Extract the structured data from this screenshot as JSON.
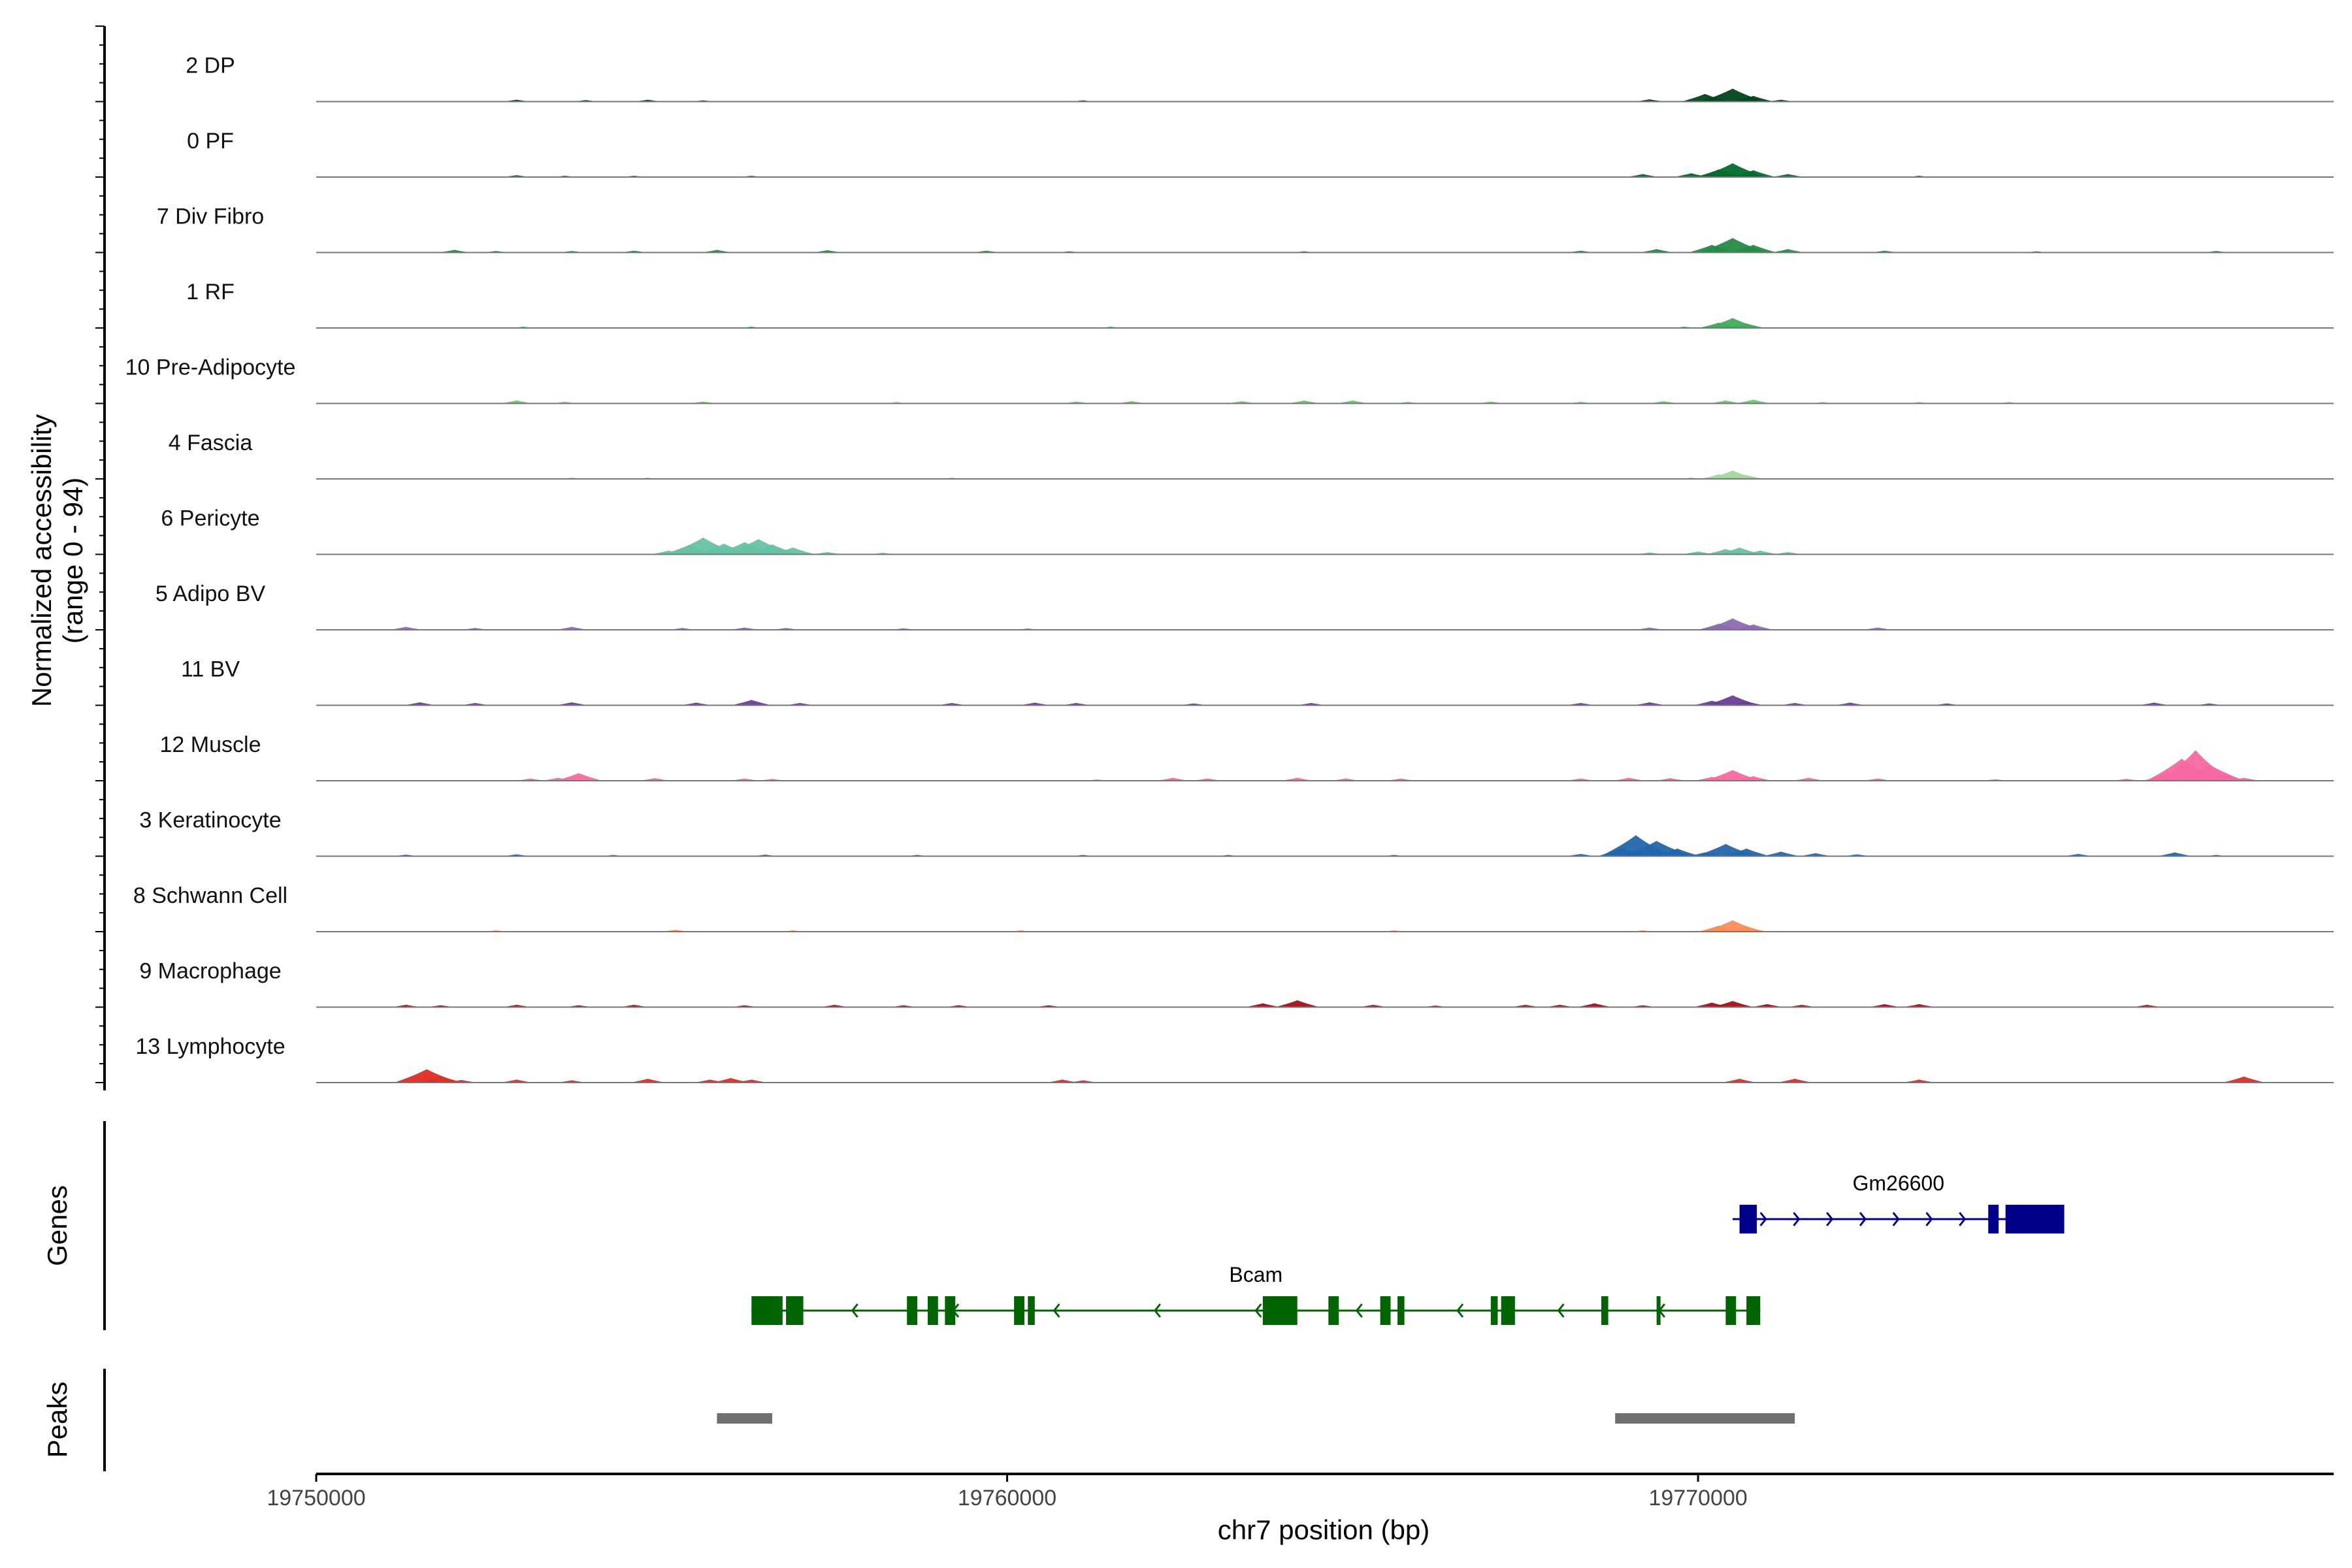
{
  "chart_data": {
    "type": "area",
    "region": {
      "chrom": "chr7",
      "start": 19750000,
      "end": 19779200
    },
    "ylabel": "Normalized accessibility",
    "ylabel_range": "(range 0 - 94)",
    "yrange": [
      0,
      94
    ],
    "xlabel": "chr7 position (bp)",
    "x_ticks": [
      {
        "value": 19750000,
        "label": "19750000"
      },
      {
        "value": 19760000,
        "label": "19760000"
      },
      {
        "value": 19770000,
        "label": "19770000"
      }
    ],
    "tracks": [
      {
        "name": "2 DP",
        "color": "#00441b",
        "bins": [
          [
            19752900,
            5
          ],
          [
            19753900,
            4
          ],
          [
            19754800,
            5
          ],
          [
            19755600,
            3
          ],
          [
            19761100,
            2
          ],
          [
            19769300,
            6
          ],
          [
            19770100,
            20
          ],
          [
            19770500,
            34
          ],
          [
            19770800,
            15
          ],
          [
            19771200,
            5
          ]
        ]
      },
      {
        "name": "0 PF",
        "color": "#006d2c",
        "bins": [
          [
            19752900,
            5
          ],
          [
            19753600,
            3
          ],
          [
            19754600,
            3
          ],
          [
            19756300,
            3
          ],
          [
            19769200,
            8
          ],
          [
            19769900,
            10
          ],
          [
            19770300,
            20
          ],
          [
            19770500,
            36
          ],
          [
            19770800,
            18
          ],
          [
            19771300,
            8
          ],
          [
            19773200,
            2
          ]
        ]
      },
      {
        "name": "7 Div Fibro",
        "color": "#238b45",
        "bins": [
          [
            19752000,
            7
          ],
          [
            19752600,
            4
          ],
          [
            19753700,
            4
          ],
          [
            19754600,
            5
          ],
          [
            19755800,
            7
          ],
          [
            19757400,
            6
          ],
          [
            19759700,
            5
          ],
          [
            19760900,
            3
          ],
          [
            19764300,
            3
          ],
          [
            19768300,
            5
          ],
          [
            19769400,
            9
          ],
          [
            19770200,
            20
          ],
          [
            19770500,
            38
          ],
          [
            19770800,
            20
          ],
          [
            19771300,
            9
          ],
          [
            19772700,
            5
          ],
          [
            19774900,
            3
          ],
          [
            19777500,
            4
          ]
        ]
      },
      {
        "name": "1 RF",
        "color": "#41ab5d",
        "bins": [
          [
            19753000,
            2
          ],
          [
            19756300,
            2
          ],
          [
            19761500,
            1
          ],
          [
            19769800,
            3
          ],
          [
            19770300,
            14
          ],
          [
            19770500,
            26
          ],
          [
            19770700,
            12
          ]
        ]
      },
      {
        "name": "10 Pre-Adipocyte",
        "color": "#74c476",
        "bins": [
          [
            19752900,
            8
          ],
          [
            19753600,
            4
          ],
          [
            19755600,
            5
          ],
          [
            19758400,
            2
          ],
          [
            19761000,
            5
          ],
          [
            19761800,
            6
          ],
          [
            19763400,
            6
          ],
          [
            19764300,
            8
          ],
          [
            19765000,
            8
          ],
          [
            19765800,
            4
          ],
          [
            19767000,
            5
          ],
          [
            19768300,
            4
          ],
          [
            19769500,
            6
          ],
          [
            19770400,
            8
          ],
          [
            19770800,
            10
          ],
          [
            19771800,
            3
          ],
          [
            19773200,
            2
          ],
          [
            19774500,
            2
          ]
        ]
      },
      {
        "name": "4 Fascia",
        "color": "#a1d99b",
        "bins": [
          [
            19753700,
            1
          ],
          [
            19754800,
            1
          ],
          [
            19759200,
            1
          ],
          [
            19769900,
            2
          ],
          [
            19770300,
            12
          ],
          [
            19770500,
            22
          ],
          [
            19770700,
            10
          ]
        ]
      },
      {
        "name": "6 Pericyte",
        "color": "#66c2a4",
        "bins": [
          [
            19755100,
            10
          ],
          [
            19755400,
            25
          ],
          [
            19755600,
            44
          ],
          [
            19755900,
            28
          ],
          [
            19756200,
            32
          ],
          [
            19756400,
            40
          ],
          [
            19756600,
            26
          ],
          [
            19756900,
            18
          ],
          [
            19757400,
            6
          ],
          [
            19758200,
            4
          ],
          [
            19769300,
            5
          ],
          [
            19770000,
            8
          ],
          [
            19770400,
            14
          ],
          [
            19770600,
            18
          ],
          [
            19770900,
            10
          ],
          [
            19771300,
            6
          ]
        ]
      },
      {
        "name": "5 Adipo BV",
        "color": "#8c6bb1",
        "bins": [
          [
            19751300,
            8
          ],
          [
            19752300,
            5
          ],
          [
            19753700,
            8
          ],
          [
            19755300,
            5
          ],
          [
            19756200,
            6
          ],
          [
            19756800,
            5
          ],
          [
            19758500,
            4
          ],
          [
            19760300,
            3
          ],
          [
            19769300,
            6
          ],
          [
            19770300,
            16
          ],
          [
            19770500,
            30
          ],
          [
            19770800,
            14
          ],
          [
            19772600,
            6
          ]
        ]
      },
      {
        "name": "11 BV",
        "color": "#6a3d9a",
        "bins": [
          [
            19751500,
            8
          ],
          [
            19752300,
            6
          ],
          [
            19753700,
            8
          ],
          [
            19755500,
            7
          ],
          [
            19756300,
            14
          ],
          [
            19757000,
            6
          ],
          [
            19759200,
            6
          ],
          [
            19760400,
            7
          ],
          [
            19761000,
            6
          ],
          [
            19762700,
            5
          ],
          [
            19764400,
            6
          ],
          [
            19768300,
            6
          ],
          [
            19769300,
            8
          ],
          [
            19770200,
            12
          ],
          [
            19770500,
            26
          ],
          [
            19770700,
            10
          ],
          [
            19771400,
            6
          ],
          [
            19772200,
            7
          ],
          [
            19773600,
            5
          ],
          [
            19776600,
            7
          ],
          [
            19777400,
            5
          ]
        ]
      },
      {
        "name": "12 Muscle",
        "color": "#f768a1",
        "bins": [
          [
            19753100,
            6
          ],
          [
            19753500,
            8
          ],
          [
            19753800,
            20
          ],
          [
            19754900,
            7
          ],
          [
            19756200,
            6
          ],
          [
            19756600,
            5
          ],
          [
            19761300,
            3
          ],
          [
            19762400,
            8
          ],
          [
            19762900,
            6
          ],
          [
            19764200,
            8
          ],
          [
            19764900,
            6
          ],
          [
            19765700,
            6
          ],
          [
            19768300,
            6
          ],
          [
            19769000,
            8
          ],
          [
            19769600,
            7
          ],
          [
            19770200,
            10
          ],
          [
            19770500,
            28
          ],
          [
            19770800,
            12
          ],
          [
            19771600,
            8
          ],
          [
            19772600,
            6
          ],
          [
            19774300,
            4
          ],
          [
            19776200,
            5
          ],
          [
            19776800,
            22
          ],
          [
            19777000,
            58
          ],
          [
            19777200,
            80
          ],
          [
            19777400,
            42
          ],
          [
            19777600,
            20
          ],
          [
            19777900,
            8
          ]
        ]
      },
      {
        "name": "3 Keratinocyte",
        "color": "#2166ac",
        "bins": [
          [
            19751300,
            4
          ],
          [
            19752900,
            5
          ],
          [
            19754300,
            3
          ],
          [
            19756500,
            4
          ],
          [
            19758700,
            3
          ],
          [
            19761100,
            3
          ],
          [
            19763200,
            2
          ],
          [
            19765600,
            3
          ],
          [
            19768300,
            6
          ],
          [
            19768900,
            22
          ],
          [
            19769100,
            55
          ],
          [
            19769400,
            40
          ],
          [
            19769700,
            20
          ],
          [
            19770100,
            10
          ],
          [
            19770400,
            32
          ],
          [
            19770700,
            20
          ],
          [
            19771200,
            12
          ],
          [
            19771700,
            8
          ],
          [
            19772300,
            5
          ],
          [
            19775500,
            6
          ],
          [
            19776900,
            10
          ],
          [
            19777500,
            3
          ]
        ]
      },
      {
        "name": "8 Schwann Cell",
        "color": "#fc8d59",
        "bins": [
          [
            19752600,
            2
          ],
          [
            19755200,
            5
          ],
          [
            19756900,
            2
          ],
          [
            19760200,
            1
          ],
          [
            19765600,
            1
          ],
          [
            19769200,
            2
          ],
          [
            19770300,
            16
          ],
          [
            19770500,
            30
          ],
          [
            19770700,
            14
          ]
        ]
      },
      {
        "name": "9 Macrophage",
        "color": "#a50f15",
        "bins": [
          [
            19751300,
            6
          ],
          [
            19751800,
            5
          ],
          [
            19752900,
            6
          ],
          [
            19753800,
            5
          ],
          [
            19754600,
            6
          ],
          [
            19756200,
            5
          ],
          [
            19757500,
            6
          ],
          [
            19758500,
            5
          ],
          [
            19759300,
            5
          ],
          [
            19760600,
            5
          ],
          [
            19763700,
            10
          ],
          [
            19764200,
            18
          ],
          [
            19765300,
            6
          ],
          [
            19766200,
            4
          ],
          [
            19767500,
            6
          ],
          [
            19768000,
            6
          ],
          [
            19768500,
            10
          ],
          [
            19769200,
            5
          ],
          [
            19770200,
            12
          ],
          [
            19770500,
            16
          ],
          [
            19771000,
            8
          ],
          [
            19771500,
            6
          ],
          [
            19772700,
            8
          ],
          [
            19773200,
            8
          ],
          [
            19776500,
            6
          ]
        ]
      },
      {
        "name": "13 Lymphocyte",
        "color": "#de2d26",
        "bins": [
          [
            19751600,
            35
          ],
          [
            19751800,
            18
          ],
          [
            19752100,
            7
          ],
          [
            19752900,
            8
          ],
          [
            19753700,
            6
          ],
          [
            19754800,
            10
          ],
          [
            19755700,
            8
          ],
          [
            19756000,
            12
          ],
          [
            19756300,
            8
          ],
          [
            19760800,
            8
          ],
          [
            19761100,
            6
          ],
          [
            19770600,
            10
          ],
          [
            19771400,
            10
          ],
          [
            19773200,
            8
          ],
          [
            19777900,
            16
          ]
        ]
      }
    ],
    "genes_track_label": "Genes",
    "genes": [
      {
        "name": "Gm26600",
        "strand": "+",
        "color": "#00008b",
        "start": 19770500,
        "end": 19775300,
        "exons": [
          [
            19770600,
            19770850
          ],
          [
            19774200,
            19774350
          ],
          [
            19774450,
            19775300
          ]
        ]
      },
      {
        "name": "Bcam",
        "strand": "-",
        "color": "#006400",
        "start": 19756300,
        "end": 19770900,
        "exons": [
          [
            19756300,
            19756750
          ],
          [
            19756800,
            19757050
          ],
          [
            19758550,
            19758700
          ],
          [
            19758850,
            19759000
          ],
          [
            19759100,
            19759250
          ],
          [
            19760100,
            19760250
          ],
          [
            19760300,
            19760400
          ],
          [
            19763700,
            19764200
          ],
          [
            19764650,
            19764800
          ],
          [
            19765400,
            19765550
          ],
          [
            19765650,
            19765750
          ],
          [
            19767000,
            19767100
          ],
          [
            19767150,
            19767350
          ],
          [
            19768600,
            19768700
          ],
          [
            19769400,
            19769450
          ],
          [
            19770400,
            19770550
          ],
          [
            19770700,
            19770900
          ]
        ]
      }
    ],
    "peaks_track_label": "Peaks",
    "peaks": [
      [
        19755800,
        19756600
      ],
      [
        19768800,
        19771400
      ]
    ]
  }
}
